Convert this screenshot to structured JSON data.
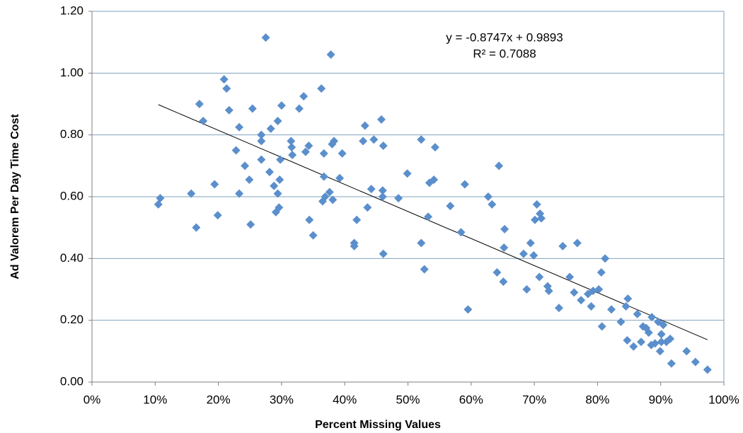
{
  "chart_data": {
    "type": "scatter",
    "xlabel": "Percent Missing Values",
    "ylabel": "Ad Valorem Per Day Time Cost",
    "color": "#5b8fcc",
    "grid": true,
    "xlim": [
      0,
      100
    ],
    "xticks": [
      {
        "value": 0,
        "label": "0%"
      },
      {
        "value": 10,
        "label": "10%"
      },
      {
        "value": 20,
        "label": "20%"
      },
      {
        "value": 30,
        "label": "30%"
      },
      {
        "value": 40,
        "label": "40%"
      },
      {
        "value": 50,
        "label": "50%"
      },
      {
        "value": 60,
        "label": "60%"
      },
      {
        "value": 70,
        "label": "70%"
      },
      {
        "value": 80,
        "label": "80%"
      },
      {
        "value": 90,
        "label": "90%"
      },
      {
        "value": 100,
        "label": "100%"
      }
    ],
    "ylim": [
      0,
      1.2
    ],
    "yticks": [
      {
        "value": 0,
        "label": "0.00"
      },
      {
        "value": 0.2,
        "label": "0.20"
      },
      {
        "value": 0.4,
        "label": "0.40"
      },
      {
        "value": 0.6,
        "label": "0.60"
      },
      {
        "value": 0.8,
        "label": "0.80"
      },
      {
        "value": 1.0,
        "label": "1.00"
      },
      {
        "value": 1.2,
        "label": "1.20"
      }
    ],
    "x": [
      10.5,
      10.8,
      15.7,
      16.5,
      17.0,
      17.6,
      19.4,
      19.9,
      20.9,
      21.3,
      21.7,
      22.8,
      23.3,
      23.3,
      24.2,
      24.9,
      25.1,
      25.4,
      26.8,
      26.8,
      26.8,
      27.5,
      28.1,
      28.3,
      28.8,
      29.1,
      29.4,
      29.4,
      29.6,
      29.7,
      30.0,
      29.8,
      31.5,
      31.6,
      31.7,
      32.8,
      33.5,
      33.8,
      34.3,
      34.4,
      35.0,
      36.3,
      36.5,
      36.7,
      36.7,
      36.9,
      37.6,
      37.8,
      38.0,
      38.1,
      38.3,
      39.2,
      39.6,
      41.5,
      41.5,
      41.9,
      42.9,
      43.2,
      43.6,
      44.2,
      44.6,
      45.8,
      46.0,
      46.1,
      46.0,
      46.1,
      48.5,
      49.9,
      52.1,
      52.1,
      52.6,
      53.2,
      53.4,
      54.1,
      54.3,
      56.7,
      58.4,
      59.0,
      59.5,
      62.7,
      63.3,
      64.1,
      64.4,
      65.1,
      65.3,
      65.2,
      68.3,
      68.8,
      69.4,
      69.9,
      70.1,
      70.4,
      70.8,
      70.9,
      71.1,
      72.1,
      72.3,
      73.9,
      74.5,
      75.6,
      76.3,
      76.8,
      77.4,
      78.5,
      79.0,
      79.3,
      80.2,
      80.6,
      80.7,
      81.2,
      82.2,
      83.7,
      84.5,
      84.8,
      84.7,
      85.7,
      86.3,
      86.9,
      87.2,
      87.7,
      88.1,
      88.6,
      88.5,
      89.1,
      89.6,
      89.9,
      90.1,
      90.1,
      90.4,
      90.9,
      91.5,
      91.7,
      94.1,
      95.5,
      97.4
    ],
    "values": [
      0.575,
      0.595,
      0.61,
      0.5,
      0.9,
      0.845,
      0.64,
      0.54,
      0.98,
      0.95,
      0.88,
      0.75,
      0.825,
      0.61,
      0.7,
      0.655,
      0.51,
      0.885,
      0.8,
      0.78,
      0.72,
      1.115,
      0.68,
      0.82,
      0.635,
      0.55,
      0.845,
      0.61,
      0.565,
      0.655,
      0.895,
      0.72,
      0.78,
      0.76,
      0.735,
      0.885,
      0.925,
      0.745,
      0.765,
      0.525,
      0.475,
      0.95,
      0.585,
      0.74,
      0.665,
      0.6,
      0.615,
      1.06,
      0.77,
      0.59,
      0.78,
      0.66,
      0.74,
      0.45,
      0.44,
      0.525,
      0.78,
      0.83,
      0.565,
      0.625,
      0.785,
      0.85,
      0.62,
      0.765,
      0.6,
      0.415,
      0.595,
      0.675,
      0.785,
      0.45,
      0.365,
      0.535,
      0.645,
      0.655,
      0.76,
      0.57,
      0.485,
      0.64,
      0.235,
      0.6,
      0.575,
      0.355,
      0.7,
      0.325,
      0.495,
      0.435,
      0.415,
      0.3,
      0.45,
      0.41,
      0.525,
      0.575,
      0.34,
      0.545,
      0.53,
      0.31,
      0.295,
      0.24,
      0.44,
      0.34,
      0.29,
      0.45,
      0.265,
      0.285,
      0.245,
      0.295,
      0.3,
      0.355,
      0.18,
      0.4,
      0.235,
      0.195,
      0.245,
      0.27,
      0.135,
      0.115,
      0.22,
      0.13,
      0.18,
      0.175,
      0.16,
      0.21,
      0.12,
      0.125,
      0.195,
      0.1,
      0.155,
      0.13,
      0.185,
      0.13,
      0.14,
      0.06,
      0.1,
      0.065,
      0.04
    ],
    "trendline": {
      "x": [
        10.5,
        97.4
      ],
      "values": [
        0.898,
        0.137
      ],
      "color": "#000000"
    },
    "trendline_equation": "y = -0.8747x + 0.9893",
    "trendline_r2": "R² = 0.7088"
  }
}
